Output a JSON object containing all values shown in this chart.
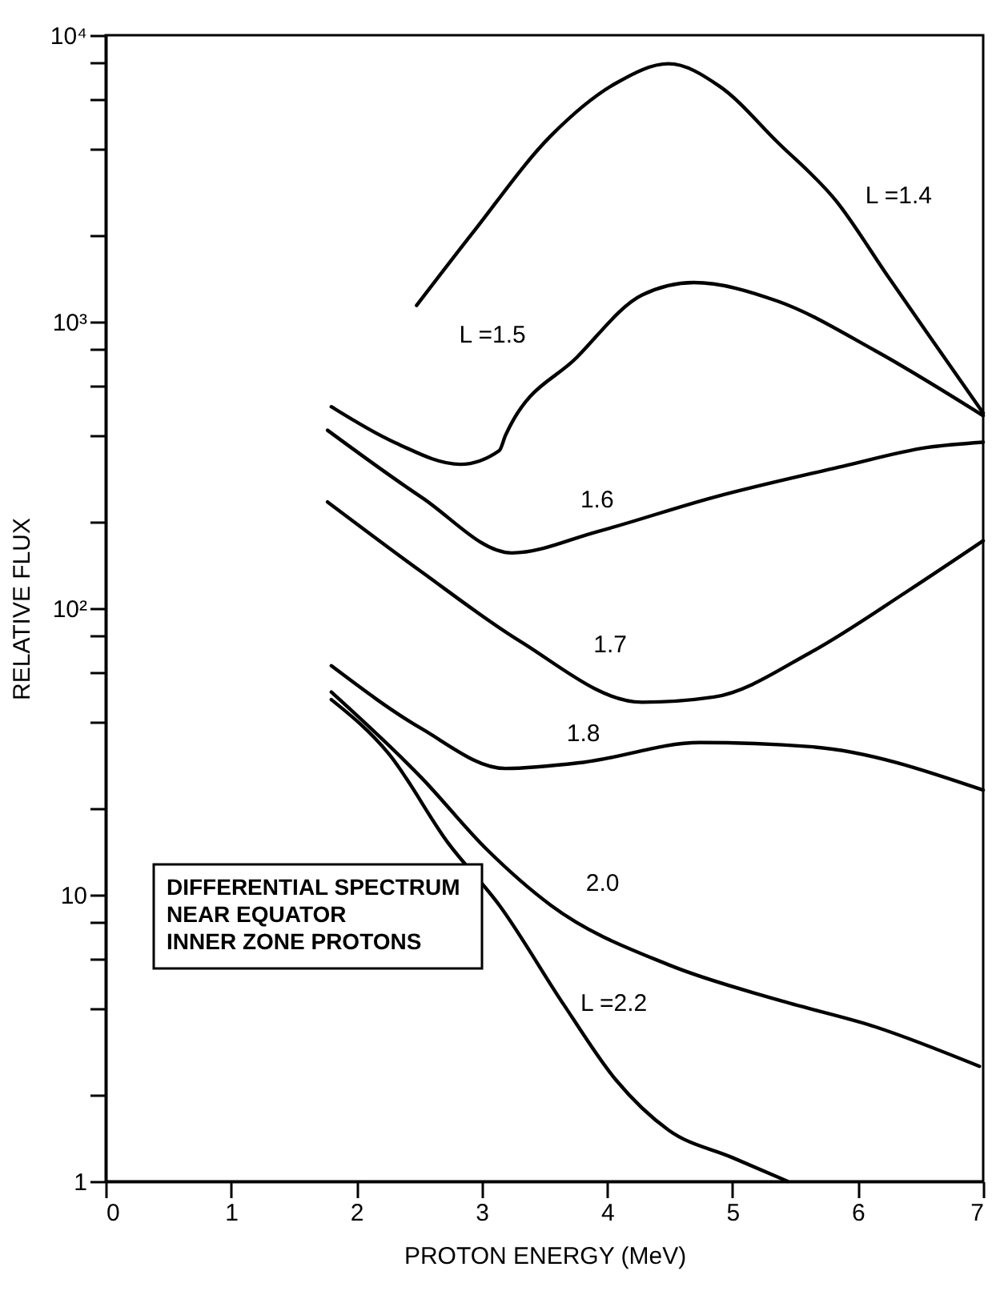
{
  "chart_data": {
    "type": "line",
    "xlabel": "PROTON ENERGY (MeV)",
    "ylabel": "RELATIVE FLUX",
    "log": "y",
    "xlim": [
      0,
      7
    ],
    "xticks": [
      0,
      1,
      2,
      3,
      4,
      5,
      6,
      7
    ],
    "ylim": [
      1,
      10000
    ],
    "yticks": [
      {
        "value": 1,
        "label": "1"
      },
      {
        "value": 2,
        "label": null
      },
      {
        "value": 4,
        "label": null
      },
      {
        "value": 6,
        "label": null
      },
      {
        "value": 8,
        "label": null
      },
      {
        "value": 10,
        "label": "10"
      },
      {
        "value": 20,
        "label": null
      },
      {
        "value": 40,
        "label": null
      },
      {
        "value": 60,
        "label": null
      },
      {
        "value": 80,
        "label": null
      },
      {
        "value": 100,
        "label": "10²"
      },
      {
        "value": 200,
        "label": null
      },
      {
        "value": 400,
        "label": null
      },
      {
        "value": 600,
        "label": null
      },
      {
        "value": 800,
        "label": null
      },
      {
        "value": 1000,
        "label": "10³"
      },
      {
        "value": 2000,
        "label": null
      },
      {
        "value": 4000,
        "label": null
      },
      {
        "value": 6000,
        "label": null
      },
      {
        "value": 8000,
        "label": null
      },
      {
        "value": 10000,
        "label": "10⁴"
      }
    ],
    "grid": false,
    "marker": "none",
    "line_style": "solid",
    "annotations": [
      "DIFFERENTIAL SPECTRUM\nNEAR EQUATOR\nINNER ZONE PROTONS"
    ],
    "series": [
      {
        "name": "L =1.4",
        "color": "#000000",
        "x": [
          2.48,
          2.93,
          3.55,
          4.07,
          4.49,
          4.9,
          5.36,
          5.83,
          6.24,
          6.55,
          7.0
        ],
        "values": [
          1140,
          2050,
          4450,
          6800,
          7950,
          6620,
          4230,
          2630,
          1440,
          918,
          480
        ]
      },
      {
        "name": "L =1.5",
        "color": "#000000",
        "x": [
          1.8,
          2.3,
          2.83,
          3.14,
          3.19,
          3.76,
          4.28,
          4.69,
          5.36,
          6.14,
          7.0
        ],
        "values": [
          505,
          380,
          318,
          355,
          402,
          752,
          1240,
          1370,
          1180,
          792,
          470
        ]
      },
      {
        "name": "1.6",
        "color": "#000000",
        "x": [
          1.77,
          2.52,
          3.24,
          3.92,
          4.85,
          5.88,
          6.55,
          7.0
        ],
        "values": [
          418,
          244,
          156,
          185,
          244,
          313,
          364,
          380
        ]
      },
      {
        "name": "1.7",
        "color": "#000000",
        "x": [
          1.77,
          2.52,
          3.3,
          4.28,
          4.85,
          5.62,
          6.4,
          7.0
        ],
        "values": [
          235,
          134,
          77,
          47,
          49,
          70,
          115,
          172
        ]
      },
      {
        "name": "1.8",
        "color": "#000000",
        "x": [
          1.8,
          2.52,
          3.19,
          3.81,
          4.74,
          5.62,
          7.0
        ],
        "values": [
          63,
          38,
          27.6,
          29,
          34,
          32.9,
          23.2
        ]
      },
      {
        "name": "2.0",
        "color": "#000000",
        "x": [
          1.8,
          2.52,
          3.04,
          3.55,
          4.49,
          5.36,
          6.14,
          6.97
        ],
        "values": [
          51,
          25.6,
          14.4,
          9.2,
          5.7,
          4.3,
          3.46,
          2.52
        ]
      },
      {
        "name": "L =2.2",
        "color": "#000000",
        "x": [
          1.8,
          2.26,
          2.73,
          3.14,
          3.66,
          4.07,
          4.49,
          5.0,
          5.44
        ],
        "values": [
          48,
          31,
          15.2,
          9.2,
          4.1,
          2.26,
          1.51,
          1.21,
          1.0
        ]
      }
    ]
  }
}
